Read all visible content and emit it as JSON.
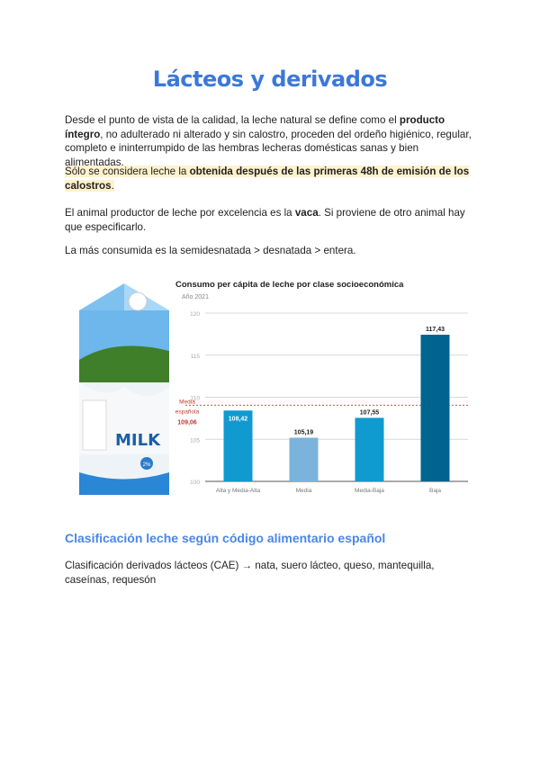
{
  "title": "Lácteos y derivados",
  "p1": {
    "a": "Desde el punto de vista de la calidad, la leche natural se define como el ",
    "b": "producto íntegro",
    "c": ", no adulterado ni alterado y sin calostro, proceden del ordeño higiénico, regular, completo e ininterrumpido de las hembras lecheras domésticas sanas y bien alimentadas."
  },
  "p2": {
    "a": "Sólo se considera leche la ",
    "b": "obtenida después de las primeras 48h de emisión de los calostros",
    "c": "."
  },
  "p3": {
    "a": "El animal productor de leche por excelencia es la ",
    "b": "vaca",
    "c": ". Si proviene de otro animal hay que especificarlo."
  },
  "p4": "La más consumida es la semidesnatada > desnatada > entera.",
  "image": {
    "label": "MILK",
    "badge": "2%"
  },
  "h2": "Clasificación leche según código alimentario español",
  "p5": "Clasificación derivados lácteos (CAE) → nata, suero lácteo, queso, mantequilla, caseínas, requesón",
  "chart_data": {
    "type": "bar",
    "title": "Consumo per cápita de leche por clase socioeconómica",
    "subtitle": "Año 2021",
    "categories": [
      "Alta y Media-Alta",
      "Media",
      "Media-Baja",
      "Baja"
    ],
    "values": [
      108.42,
      105.19,
      107.55,
      117.43
    ],
    "value_labels": [
      "108,42",
      "105,19",
      "107,55",
      "117,43"
    ],
    "colors": [
      "#0f9ad0",
      "#7ab4dc",
      "#0f9ad0",
      "#00648f"
    ],
    "ylim": [
      100,
      120
    ],
    "yticks": [
      "100",
      "105",
      "110",
      "115",
      "120"
    ],
    "grid": true,
    "reference_line": {
      "value": 109.06,
      "label1": "Media",
      "label2": "española",
      "label3": "109,06",
      "color": "#c0392b"
    }
  }
}
